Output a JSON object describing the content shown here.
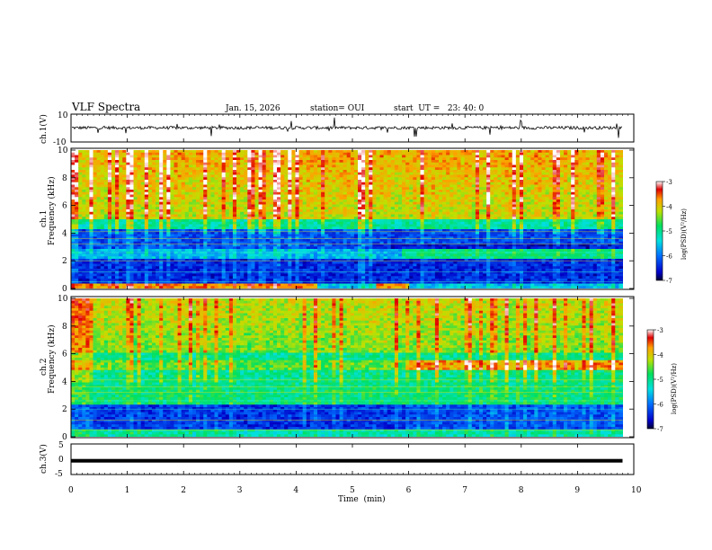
{
  "header": {
    "title": "VLF Spectra",
    "date": "Jan. 15, 2026",
    "station": "station= OUI",
    "start": "start  UT =   23: 40: 0"
  },
  "chart_data": [
    {
      "type": "line",
      "panel": "ch1-waveform",
      "ylabel": "ch.1(V)",
      "ylim": [
        -10,
        10
      ],
      "yticks": [
        "10",
        "-10"
      ],
      "description_level": 0.2
    },
    {
      "type": "heatmap",
      "panel": "ch1-spectrogram",
      "ylabel": "ch.1\nFrequency  (kHz)",
      "ylabel_lines": [
        "ch.1",
        "Frequency  (kHz)"
      ],
      "ylim": [
        0,
        10
      ],
      "yticks": [
        "0",
        "2",
        "4",
        "6",
        "8",
        "10"
      ],
      "colorbar": {
        "label": "log(PSD)(V²/Hz)",
        "range": [
          -7,
          -3
        ],
        "ticks": [
          "-3",
          "-4",
          "-5",
          "-6",
          "-7"
        ]
      }
    },
    {
      "type": "heatmap",
      "panel": "ch2-spectrogram",
      "ylabel_lines": [
        "ch.2",
        "Frequency  (kHz)"
      ],
      "ylim": [
        0,
        10
      ],
      "yticks": [
        "0",
        "2",
        "4",
        "6",
        "8",
        "10"
      ],
      "colorbar": {
        "label": "log(PSD)(V²/Hz)",
        "range": [
          -7,
          -3
        ],
        "ticks": [
          "-3",
          "-4",
          "-5",
          "-6",
          "-7"
        ]
      }
    },
    {
      "type": "line",
      "panel": "ch3-waveform",
      "ylabel": "ch.3(V)",
      "ylim": [
        -5,
        5
      ],
      "yticks": [
        "5",
        "0",
        "-5"
      ],
      "level": -0.5
    }
  ],
  "xaxis": {
    "label": "Time  (min)",
    "range": [
      0,
      10
    ],
    "ticks": [
      "0",
      "1",
      "2",
      "3",
      "4",
      "5",
      "6",
      "7",
      "8",
      "9",
      "10"
    ],
    "data_end": 9.8
  },
  "colors": {
    "low": "#0000a0",
    "mid": "#00d070",
    "high": "#e00000"
  }
}
